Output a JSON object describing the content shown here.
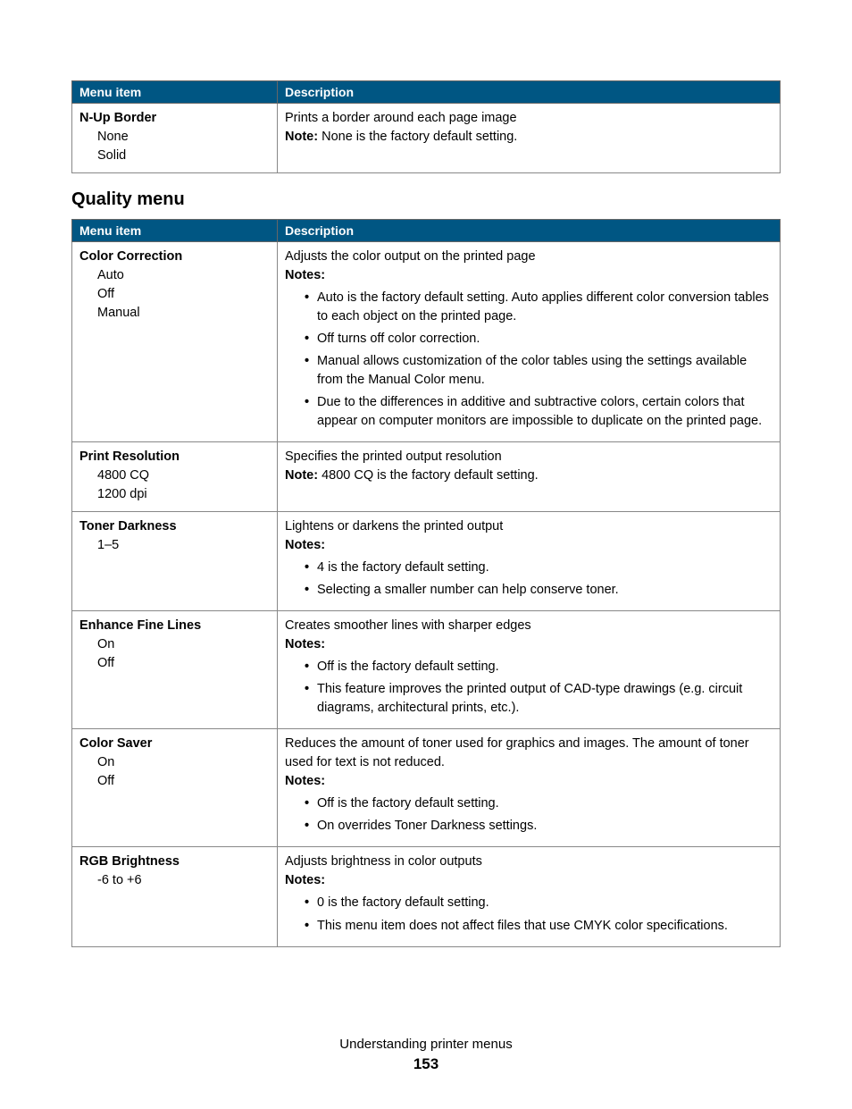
{
  "table1": {
    "header_left": "Menu item",
    "header_right": "Description",
    "row": {
      "title": "N-Up Border",
      "opt1": "None",
      "opt2": "Solid",
      "desc": "Prints a border around each page image",
      "note_label": "Note: ",
      "note_text": "None is the factory default setting."
    }
  },
  "section_title": "Quality menu",
  "table2": {
    "header_left": "Menu item",
    "header_right": "Description",
    "rows": {
      "color_correction": {
        "title": "Color Correction",
        "opt1": "Auto",
        "opt2": "Off",
        "opt3": "Manual",
        "desc": "Adjusts the color output on the printed page",
        "notes_label": "Notes:",
        "n1": "Auto is the factory default setting. Auto applies different color conversion tables to each object on the printed page.",
        "n2": "Off turns off color correction.",
        "n3": "Manual allows customization of the color tables using the settings available from the Manual Color menu.",
        "n4": "Due to the differences in additive and subtractive colors, certain colors that appear on computer monitors are impossible to duplicate on the printed page."
      },
      "print_resolution": {
        "title": "Print Resolution",
        "opt1": "4800 CQ",
        "opt2": "1200 dpi",
        "desc": "Specifies the printed output resolution",
        "note_label": "Note: ",
        "note_text": "4800 CQ is the factory default setting."
      },
      "toner_darkness": {
        "title": "Toner Darkness",
        "opt1": "1–5",
        "desc": "Lightens or darkens the printed output",
        "notes_label": "Notes:",
        "n1": "4 is the factory default setting.",
        "n2": "Selecting a smaller number can help conserve toner."
      },
      "enhance_fine_lines": {
        "title": "Enhance Fine Lines",
        "opt1": "On",
        "opt2": "Off",
        "desc": "Creates smoother lines with sharper edges",
        "notes_label": "Notes:",
        "n1": "Off is the factory default setting.",
        "n2": "This feature improves the printed output of CAD-type drawings (e.g. circuit diagrams, architectural prints, etc.)."
      },
      "color_saver": {
        "title": "Color Saver",
        "opt1": "On",
        "opt2": "Off",
        "desc": "Reduces the amount of toner used for graphics and images. The amount of toner used for text is not reduced.",
        "notes_label": "Notes:",
        "n1": "Off is the factory default setting.",
        "n2": "On overrides Toner Darkness settings."
      },
      "rgb_brightness": {
        "title": "RGB Brightness",
        "opt1": "-6 to +6",
        "desc": "Adjusts brightness in color outputs",
        "notes_label": "Notes:",
        "n1": "0 is the factory default setting.",
        "n2": "This menu item does not affect files that use CMYK color specifications."
      }
    }
  },
  "footer": {
    "chapter": "Understanding printer menus",
    "page": "153"
  }
}
